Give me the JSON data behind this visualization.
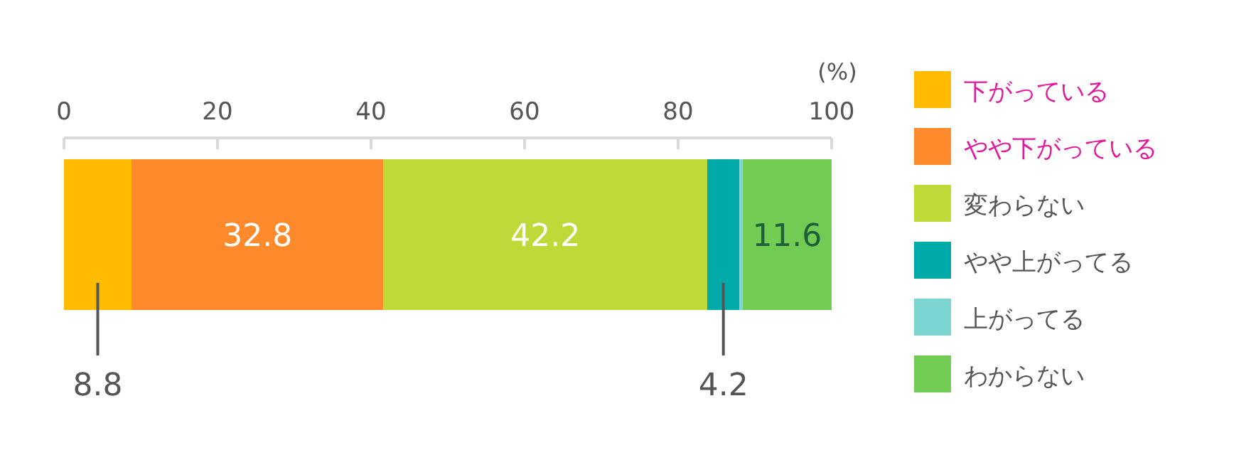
{
  "chart_data": {
    "type": "bar",
    "orientation": "horizontal",
    "stacked": true,
    "categories": [
      null
    ],
    "xlabel": "(%)",
    "xlim": [
      0,
      100
    ],
    "xticks": [
      0,
      20,
      40,
      60,
      80,
      100
    ],
    "legend": "right",
    "grid": false,
    "series": [
      {
        "name": "下がっている",
        "color": "#ffbb00",
        "values": [
          8.8
        ],
        "value_labels": [
          "8.8"
        ]
      },
      {
        "name": "やや下がっている",
        "color": "#ff8a2c",
        "values": [
          32.8
        ],
        "value_labels": [
          "32.8"
        ]
      },
      {
        "name": "変わらない",
        "color": "#bfd938",
        "values": [
          42.2
        ],
        "value_labels": [
          "42.2"
        ]
      },
      {
        "name": "やや上がってる",
        "color": "#00aaa8",
        "values": [
          4.2
        ],
        "value_labels": [
          "4.2"
        ]
      },
      {
        "name": "上がってる",
        "color": "#7dd5d1",
        "values": [
          0.4
        ],
        "value_labels": [
          null
        ]
      },
      {
        "name": "わからない",
        "color": "#72cb52",
        "values": [
          11.6
        ],
        "value_labels": [
          "11.6"
        ]
      }
    ]
  }
}
